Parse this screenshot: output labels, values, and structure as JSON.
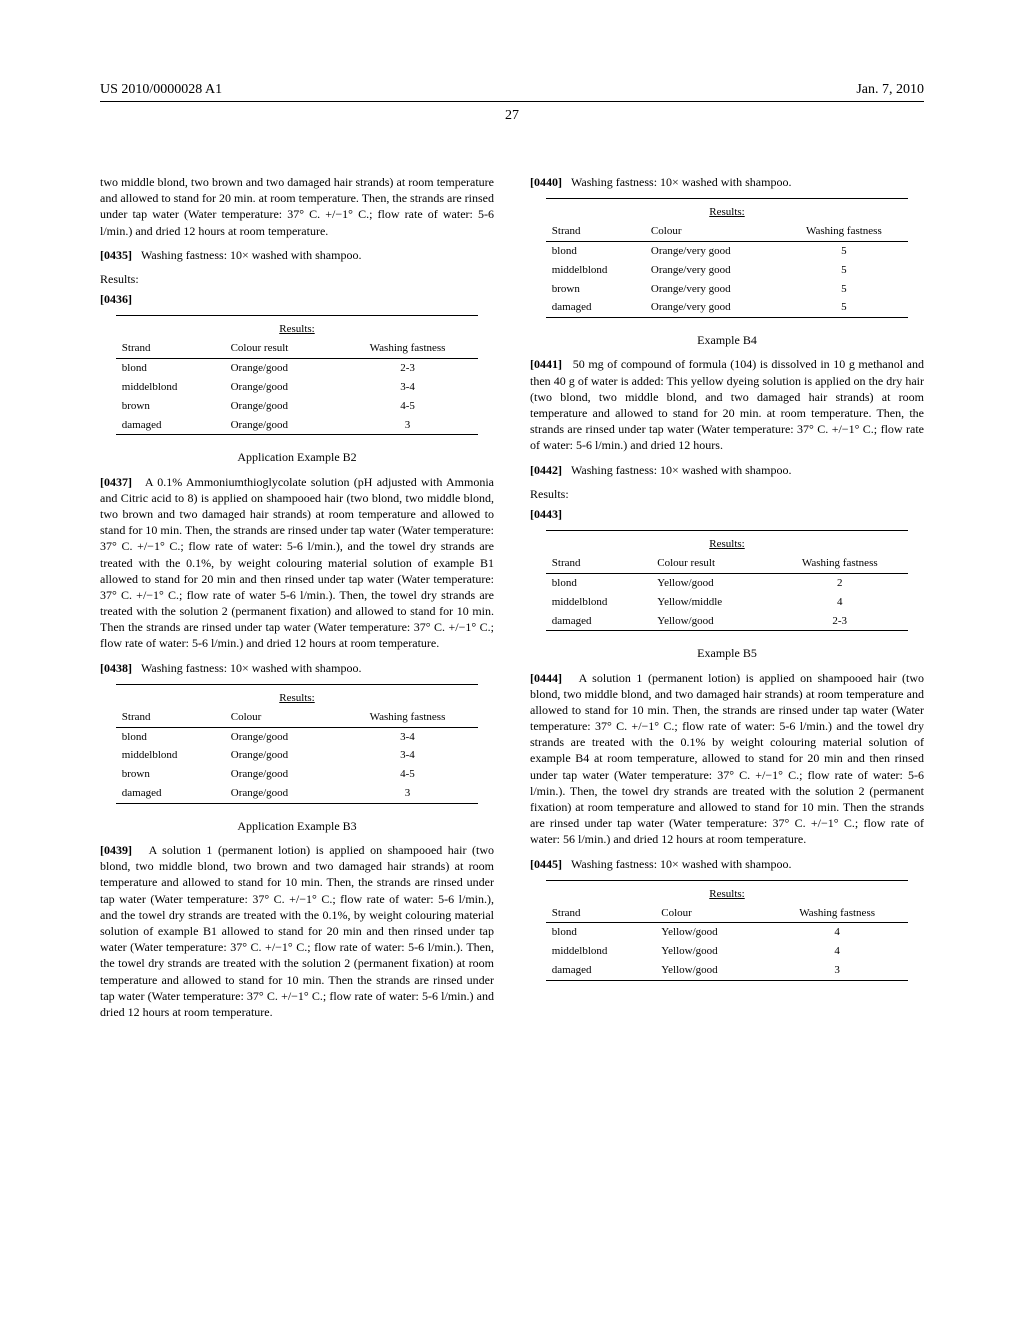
{
  "header": {
    "left": "US 2010/0000028 A1",
    "right": "Jan. 7, 2010"
  },
  "page_number": "27",
  "col1": {
    "intro": "two middle blond, two brown and two damaged hair strands) at room temperature and allowed to stand for 20 min. at room temperature. Then, the strands are rinsed under tap water (Water temperature: 37° C. +/−1° C.; flow rate of water: 5-6 l/min.) and dried 12 hours at room temperature.",
    "p0435": {
      "num": "[0435]",
      "text": "Washing fastness: 10× washed with shampoo."
    },
    "results_label": "Results:",
    "p0436": {
      "num": "[0436]"
    },
    "t1": {
      "caption": "Results:",
      "headers": [
        "Strand",
        "Colour result",
        "Washing fastness"
      ],
      "rows": [
        [
          "blond",
          "Orange/good",
          "2-3"
        ],
        [
          "middelblond",
          "Orange/good",
          "3-4"
        ],
        [
          "brown",
          "Orange/good",
          "4-5"
        ],
        [
          "damaged",
          "Orange/good",
          "3"
        ]
      ]
    },
    "ex_b2": "Application Example B2",
    "p0437": {
      "num": "[0437]",
      "text": "A 0.1% Ammoniumthioglycolate solution (pH adjusted with Ammonia and Citric acid to 8) is applied on shampooed hair (two blond, two middle blond, two brown and two damaged hair strands) at room temperature and allowed to stand for 10 min. Then, the strands are rinsed under tap water (Water temperature: 37° C. +/−1° C.; flow rate of water: 5-6 l/min.), and the towel dry strands are treated with the 0.1%, by weight colouring material solution of example B1 allowed to stand for 20 min and then rinsed under tap water (Water temperature: 37° C. +/−1° C.; flow rate of water 5-6 l/min.). Then, the towel dry strands are treated with the solution 2 (permanent fixation) and allowed to stand for 10 min. Then the strands are rinsed under tap water (Water temperature: 37° C. +/−1° C.; flow rate of water: 5-6 l/min.) and dried 12 hours at room temperature."
    },
    "p0438": {
      "num": "[0438]",
      "text": "Washing fastness: 10× washed with shampoo."
    },
    "t2": {
      "caption": "Results:",
      "headers": [
        "Strand",
        "Colour",
        "Washing fastness"
      ],
      "rows": [
        [
          "blond",
          "Orange/good",
          "3-4"
        ],
        [
          "middelblond",
          "Orange/good",
          "3-4"
        ],
        [
          "brown",
          "Orange/good",
          "4-5"
        ],
        [
          "damaged",
          "Orange/good",
          "3"
        ]
      ]
    },
    "ex_b3": "Application Example B3",
    "p0439": {
      "num": "[0439]",
      "text": "A solution 1 (permanent lotion) is applied on shampooed hair (two blond, two middle blond, two brown and two damaged hair strands) at room temperature and allowed to stand for 10 min. Then, the strands are rinsed under tap water (Water temperature: 37° C. +/−1° C.; flow rate of water: 5-6 l/min.), and the towel dry strands are treated with the 0.1%, by weight colouring material solution of example B1 allowed to stand for 20 min and then rinsed under tap water (Water temperature: 37° C. +/−1° C.; flow rate of water: 5-6 l/min.). Then, the towel dry strands are treated with the solution 2 (permanent fixation) at room temperature and allowed to stand for 10 min. Then the strands are rinsed under tap water (Water temperature: 37° C. +/−1° C.; flow rate of water: 5-6 l/min.) and dried 12 hours at room temperature."
    }
  },
  "col2": {
    "p0440": {
      "num": "[0440]",
      "text": "Washing fastness: 10× washed with shampoo."
    },
    "t3": {
      "caption": "Results:",
      "headers": [
        "Strand",
        "Colour",
        "Washing fastness"
      ],
      "rows": [
        [
          "blond",
          "Orange/very good",
          "5"
        ],
        [
          "middelblond",
          "Orange/very good",
          "5"
        ],
        [
          "brown",
          "Orange/very good",
          "5"
        ],
        [
          "damaged",
          "Orange/very good",
          "5"
        ]
      ]
    },
    "ex_b4": "Example B4",
    "p0441": {
      "num": "[0441]",
      "text": "50 mg of compound of formula (104) is dissolved in 10 g methanol and then 40 g of water is added: This yellow dyeing solution is applied on the dry hair (two blond, two middle blond, and two damaged hair strands) at room temperature and allowed to stand for 20 min. at room temperature. Then, the strands are rinsed under tap water (Water temperature: 37° C. +/−1° C.; flow rate of water: 5-6 l/min.) and dried 12 hours."
    },
    "p0442": {
      "num": "[0442]",
      "text": "Washing fastness: 10× washed with shampoo."
    },
    "results_label": "Results:",
    "p0443": {
      "num": "[0443]"
    },
    "t4": {
      "caption": "Results:",
      "headers": [
        "Strand",
        "Colour result",
        "Washing fastness"
      ],
      "rows": [
        [
          "blond",
          "Yellow/good",
          "2"
        ],
        [
          "middelblond",
          "Yellow/middle",
          "4"
        ],
        [
          "damaged",
          "Yellow/good",
          "2-3"
        ]
      ]
    },
    "ex_b5": "Example B5",
    "p0444": {
      "num": "[0444]",
      "text": "A solution 1 (permanent lotion) is applied on shampooed hair (two blond, two middle blond, and two damaged hair strands) at room temperature and allowed to stand for 10 min. Then, the strands are rinsed under tap water (Water temperature: 37° C. +/−1° C.; flow rate of water: 5-6 l/min.) and the towel dry strands are treated with the 0.1% by weight colouring material solution of example B4 at room temperature, allowed to stand for 20 min and then rinsed under tap water (Water temperature: 37° C. +/−1° C.; flow rate of water: 5-6 l/min.). Then, the towel dry strands are treated with the solution 2 (permanent fixation) at room temperature and allowed to stand for 10 min. Then the strands are rinsed under tap water (Water temperature: 37° C. +/−1° C.; flow rate of water: 56 l/min.) and dried 12 hours at room temperature."
    },
    "p0445": {
      "num": "[0445]",
      "text": "Washing fastness: 10× washed with shampoo."
    },
    "t5": {
      "caption": "Results:",
      "headers": [
        "Strand",
        "Colour",
        "Washing fastness"
      ],
      "rows": [
        [
          "blond",
          "Yellow/good",
          "4"
        ],
        [
          "middelblond",
          "Yellow/good",
          "4"
        ],
        [
          "damaged",
          "Yellow/good",
          "3"
        ]
      ]
    }
  }
}
